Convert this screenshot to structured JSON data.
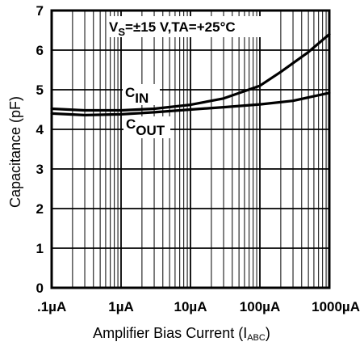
{
  "chart_data": {
    "type": "line",
    "title": "",
    "annotation": {
      "v": "V",
      "v_sub": "S",
      "rest": "=±15 V,TA=+25°C"
    },
    "xlabel": {
      "main": "Amplifier Bias Current (I",
      "sub": "ABC",
      "close": ")"
    },
    "ylabel": "Capacitance (pF)",
    "x_scale": "log",
    "xlim_uA": [
      0.1,
      1000
    ],
    "ylim": [
      0,
      7
    ],
    "x_ticks": [
      {
        "value": 0.1,
        "label": ".1µA"
      },
      {
        "value": 1,
        "label": "1µA"
      },
      {
        "value": 10,
        "label": "10µA"
      },
      {
        "value": 100,
        "label": "100µA"
      },
      {
        "value": 1000,
        "label": "1000µA"
      }
    ],
    "y_ticks": [
      {
        "value": 0,
        "label": "0"
      },
      {
        "value": 1,
        "label": "1"
      },
      {
        "value": 2,
        "label": "2"
      },
      {
        "value": 3,
        "label": "3"
      },
      {
        "value": 4,
        "label": "4"
      },
      {
        "value": 5,
        "label": "5"
      },
      {
        "value": 6,
        "label": "6"
      },
      {
        "value": 7,
        "label": "7"
      }
    ],
    "grid": true,
    "series": [
      {
        "name": "C",
        "name_sub": "IN",
        "x": [
          0.1,
          0.3,
          1,
          3,
          10,
          30,
          100,
          200,
          500,
          1000
        ],
        "y": [
          4.52,
          4.48,
          4.48,
          4.52,
          4.62,
          4.78,
          5.1,
          5.45,
          5.95,
          6.4
        ]
      },
      {
        "name": "C",
        "name_sub": "OUT",
        "x": [
          0.1,
          0.3,
          1,
          3,
          10,
          30,
          100,
          300,
          1000
        ],
        "y": [
          4.4,
          4.36,
          4.38,
          4.43,
          4.5,
          4.56,
          4.63,
          4.72,
          4.92
        ]
      }
    ]
  }
}
